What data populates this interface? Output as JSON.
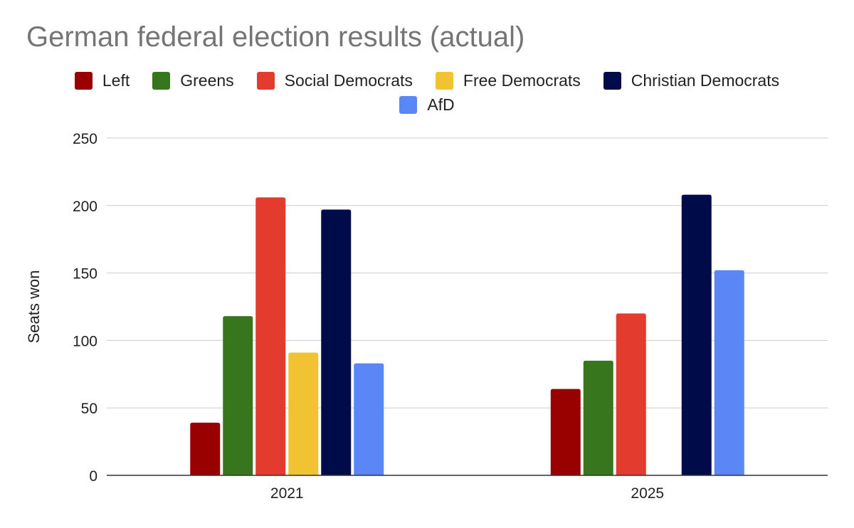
{
  "chart_data": {
    "type": "bar",
    "title": "German federal election results (actual)",
    "xlabel": "",
    "ylabel": "Seats won",
    "categories": [
      "2021",
      "2025"
    ],
    "ylim": [
      0,
      250
    ],
    "yticks": [
      0,
      50,
      100,
      150,
      200,
      250
    ],
    "grid": true,
    "legend_position": "top",
    "series": [
      {
        "name": "Left",
        "color": "#990000",
        "values": [
          39,
          64
        ]
      },
      {
        "name": "Greens",
        "color": "#38761d",
        "values": [
          118,
          85
        ]
      },
      {
        "name": "Social Democrats",
        "color": "#e33b2e",
        "values": [
          206,
          120
        ]
      },
      {
        "name": "Free Democrats",
        "color": "#f1c232",
        "values": [
          91,
          0
        ]
      },
      {
        "name": "Christian Democrats",
        "color": "#000c4a",
        "values": [
          197,
          208
        ]
      },
      {
        "name": "AfD",
        "color": "#5b86f6",
        "values": [
          83,
          152
        ]
      }
    ]
  }
}
